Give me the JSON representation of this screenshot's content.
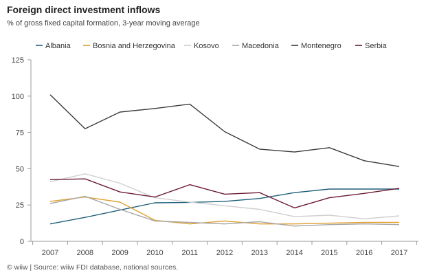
{
  "header": {
    "title": "Foreign direct investment inflows",
    "subtitle": "% of gross fixed capital formation, 3-year moving average"
  },
  "footer": {
    "source": "© wiiw | Source: wiiw FDI database, national sources."
  },
  "chart_data": {
    "type": "line",
    "x": [
      "2007",
      "2008",
      "2009",
      "2010",
      "2011",
      "2012",
      "2013",
      "2014",
      "2015",
      "2016",
      "2017"
    ],
    "ylim": [
      0,
      125
    ],
    "yticks": [
      0,
      25,
      50,
      75,
      100,
      125
    ],
    "grid": false,
    "legend_position": "top",
    "series": [
      {
        "name": "Albania",
        "color": "#1f5f7a",
        "values": [
          12,
          16.5,
          21.5,
          26.5,
          26.8,
          27.5,
          29.5,
          33.5,
          36,
          36,
          36
        ]
      },
      {
        "name": "Bosnia and Herzegovina",
        "color": "#e0a030",
        "values": [
          27.5,
          30.5,
          27,
          14.5,
          12,
          14,
          12,
          12,
          12.5,
          13,
          13
        ]
      },
      {
        "name": "Kosovo",
        "color": "#cfcfcf",
        "values": [
          41,
          46.5,
          40,
          30,
          27,
          24.5,
          22,
          17,
          18,
          15.5,
          17.5
        ]
      },
      {
        "name": "Macedonia",
        "color": "#a6a6a6",
        "values": [
          26,
          31,
          22,
          14,
          13,
          12,
          13.5,
          10.5,
          11.5,
          12,
          11.5
        ]
      },
      {
        "name": "Montenegro",
        "color": "#3a3a3a",
        "values": [
          101,
          77.5,
          89,
          91.5,
          94.5,
          75.5,
          63.5,
          61.5,
          64.5,
          55.5,
          51.5
        ]
      },
      {
        "name": "Serbia",
        "color": "#6b1a35",
        "values": [
          42.5,
          43,
          34,
          30.5,
          39,
          32.5,
          33.5,
          23,
          30,
          33,
          36.5
        ]
      }
    ]
  }
}
